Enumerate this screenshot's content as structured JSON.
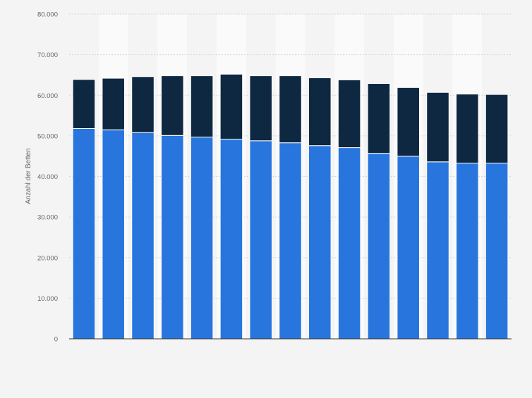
{
  "chart_data": {
    "type": "bar",
    "stacked": true,
    "ylabel": "Anzahl der Betten",
    "y_ticks": [
      "0",
      "10.000",
      "20.000",
      "30.000",
      "40.000",
      "50.000",
      "60.000",
      "70.000",
      "80.000"
    ],
    "ylim": [
      0,
      80000
    ],
    "grid": true,
    "legend": "none",
    "categories": [
      "",
      "",
      "",
      "",
      "",
      "",
      "",
      "",
      "",
      "",
      "",
      "",
      "",
      "",
      ""
    ],
    "series": [
      {
        "color": "#2876dd",
        "values": [
          51800,
          51500,
          50800,
          50100,
          49700,
          49200,
          48800,
          48300,
          47600,
          47100,
          45700,
          45000,
          43600,
          43300,
          43300
        ]
      },
      {
        "color": "#0f2841",
        "values": [
          12100,
          12700,
          13800,
          14700,
          15100,
          16000,
          16000,
          16500,
          16700,
          16700,
          17200,
          16900,
          17100,
          17000,
          16900
        ]
      }
    ]
  }
}
